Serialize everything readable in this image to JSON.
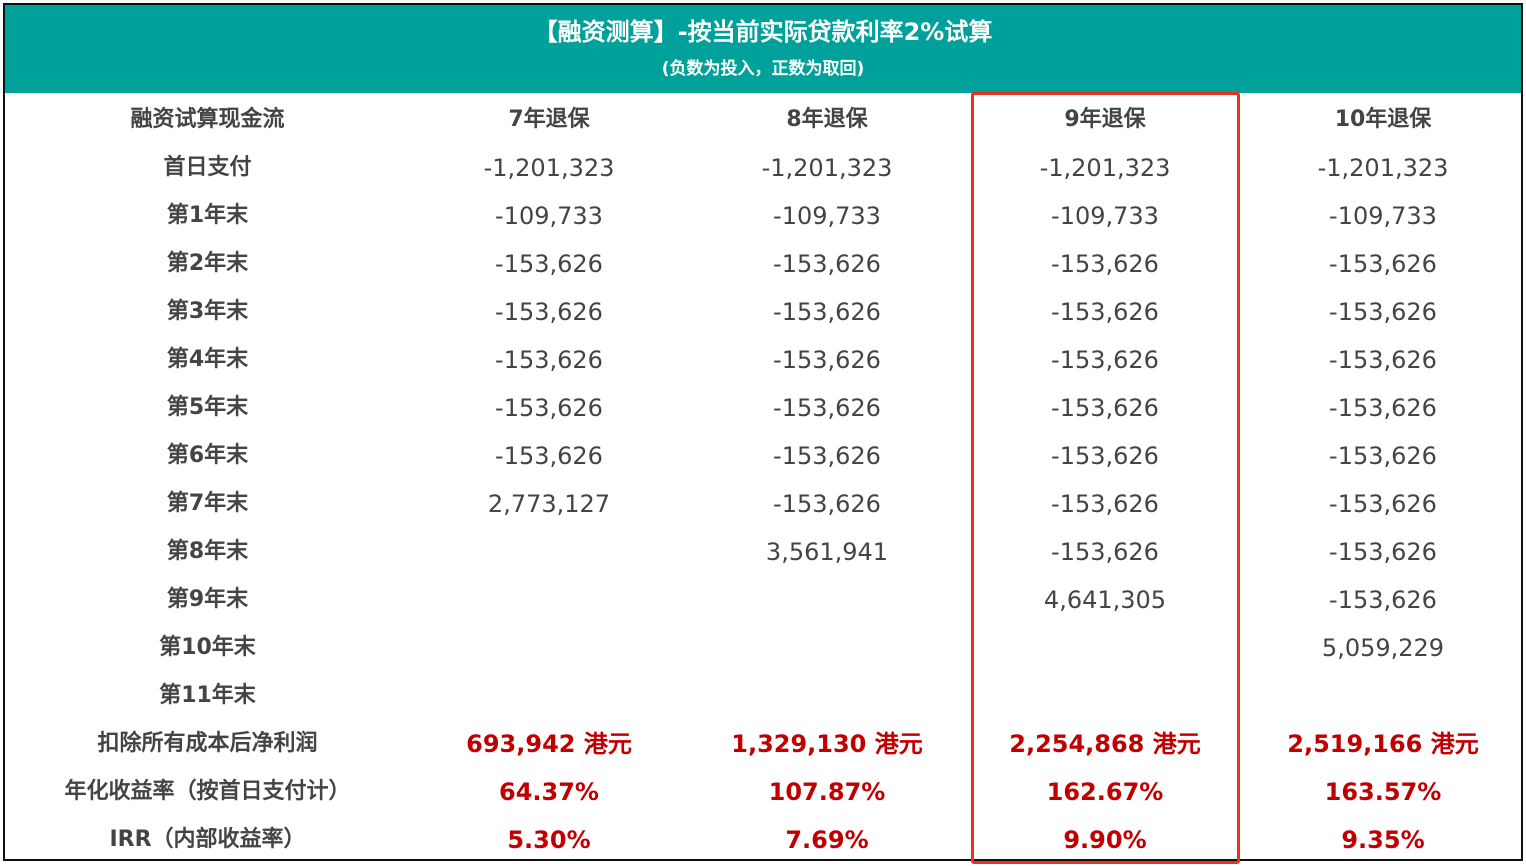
{
  "header": {
    "title": "【融资测算】-按当前实际贷款利率2%试算",
    "subtitle": "(负数为投入，正数为取回)"
  },
  "table": {
    "columns": [
      "融资试算现金流",
      "7年退保",
      "8年退保",
      "9年退保",
      "10年退保"
    ],
    "rows": [
      {
        "label": "首日支付",
        "values": [
          "-1,201,323",
          "-1,201,323",
          "-1,201,323",
          "-1,201,323"
        ]
      },
      {
        "label": "第1年末",
        "values": [
          "-109,733",
          "-109,733",
          "-109,733",
          "-109,733"
        ]
      },
      {
        "label": "第2年末",
        "values": [
          "-153,626",
          "-153,626",
          "-153,626",
          "-153,626"
        ]
      },
      {
        "label": "第3年末",
        "values": [
          "-153,626",
          "-153,626",
          "-153,626",
          "-153,626"
        ]
      },
      {
        "label": "第4年末",
        "values": [
          "-153,626",
          "-153,626",
          "-153,626",
          "-153,626"
        ]
      },
      {
        "label": "第5年末",
        "values": [
          "-153,626",
          "-153,626",
          "-153,626",
          "-153,626"
        ]
      },
      {
        "label": "第6年末",
        "values": [
          "-153,626",
          "-153,626",
          "-153,626",
          "-153,626"
        ]
      },
      {
        "label": "第7年末",
        "values": [
          "2,773,127",
          "-153,626",
          "-153,626",
          "-153,626"
        ]
      },
      {
        "label": "第8年末",
        "values": [
          "",
          "3,561,941",
          "-153,626",
          "-153,626"
        ]
      },
      {
        "label": "第9年末",
        "values": [
          "",
          "",
          "4,641,305",
          "-153,626"
        ]
      },
      {
        "label": "第10年末",
        "values": [
          "",
          "",
          "",
          "5,059,229"
        ]
      },
      {
        "label": "第11年末",
        "values": [
          "",
          "",
          "",
          ""
        ]
      }
    ],
    "summary": [
      {
        "label": "扣除所有成本后净利润",
        "values": [
          "693,942 港元",
          "1,329,130 港元",
          "2,254,868 港元",
          "2,519,166 港元"
        ]
      },
      {
        "label": "年化收益率（按首日支付计）",
        "values": [
          "64.37%",
          "107.87%",
          "162.67%",
          "163.57%"
        ]
      },
      {
        "label": "IRR（内部收益率）",
        "values": [
          "5.30%",
          "7.69%",
          "9.90%",
          "9.35%"
        ]
      }
    ]
  },
  "colors": {
    "header_bg": "#00A19A",
    "highlight_border": "#E8321E",
    "summary_value": "#C00000"
  }
}
